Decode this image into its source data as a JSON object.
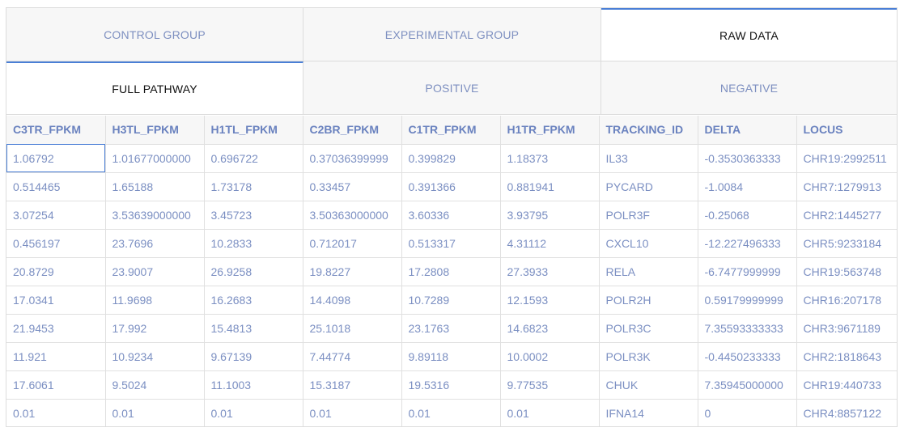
{
  "primary_tabs": [
    {
      "label": "CONTROL GROUP",
      "active": false
    },
    {
      "label": "EXPERIMENTAL GROUP",
      "active": false
    },
    {
      "label": "RAW DATA",
      "active": true
    }
  ],
  "secondary_tabs": [
    {
      "label": "FULL PATHWAY",
      "active": true
    },
    {
      "label": "POSITIVE",
      "active": false
    },
    {
      "label": "NEGATIVE",
      "active": false
    }
  ],
  "table": {
    "columns": [
      "C3TR_FPKM",
      "H3TL_FPKM",
      "H1TL_FPKM",
      "C2BR_FPKM",
      "C1TR_FPKM",
      "H1TR_FPKM",
      "TRACKING_ID",
      "DELTA",
      "LOCUS"
    ],
    "rows": [
      [
        "1.06792",
        "1.01677000000",
        "0.696722",
        "0.37036399999",
        "0.399829",
        "1.18373",
        "IL33",
        "-0.3530363333",
        "CHR19:2992511"
      ],
      [
        "0.514465",
        "1.65188",
        "1.73178",
        "0.33457",
        "0.391366",
        "0.881941",
        "PYCARD",
        "-1.0084",
        "CHR7:1279913"
      ],
      [
        "3.07254",
        "3.53639000000",
        "3.45723",
        "3.50363000000",
        "3.60336",
        "3.93795",
        "POLR3F",
        "-0.25068",
        "CHR2:1445277"
      ],
      [
        "0.456197",
        "23.7696",
        "10.2833",
        "0.712017",
        "0.513317",
        "4.31112",
        "CXCL10",
        "-12.227496333",
        "CHR5:9233184"
      ],
      [
        "20.8729",
        "23.9007",
        "26.9258",
        "19.8227",
        "17.2808",
        "27.3933",
        "RELA",
        "-6.7477999999",
        "CHR19:563748"
      ],
      [
        "17.0341",
        "11.9698",
        "16.2683",
        "14.4098",
        "10.7289",
        "12.1593",
        "POLR2H",
        "0.59179999999",
        "CHR16:207178"
      ],
      [
        "21.9453",
        "17.992",
        "15.4813",
        "25.1018",
        "23.1763",
        "14.6823",
        "POLR3C",
        "7.35593333333",
        "CHR3:9671189"
      ],
      [
        "11.921",
        "10.9234",
        "9.67139",
        "7.44774",
        "9.89118",
        "10.0002",
        "POLR3K",
        "-0.4450233333",
        "CHR2:1818643"
      ],
      [
        "17.6061",
        "9.5024",
        "11.1003",
        "15.3187",
        "19.5316",
        "9.77535",
        "CHUK",
        "7.35945000000",
        "CHR19:440733"
      ],
      [
        "0.01",
        "0.01",
        "0.01",
        "0.01",
        "0.01",
        "0.01",
        "IFNA14",
        "0",
        "CHR4:8857122"
      ]
    ]
  }
}
